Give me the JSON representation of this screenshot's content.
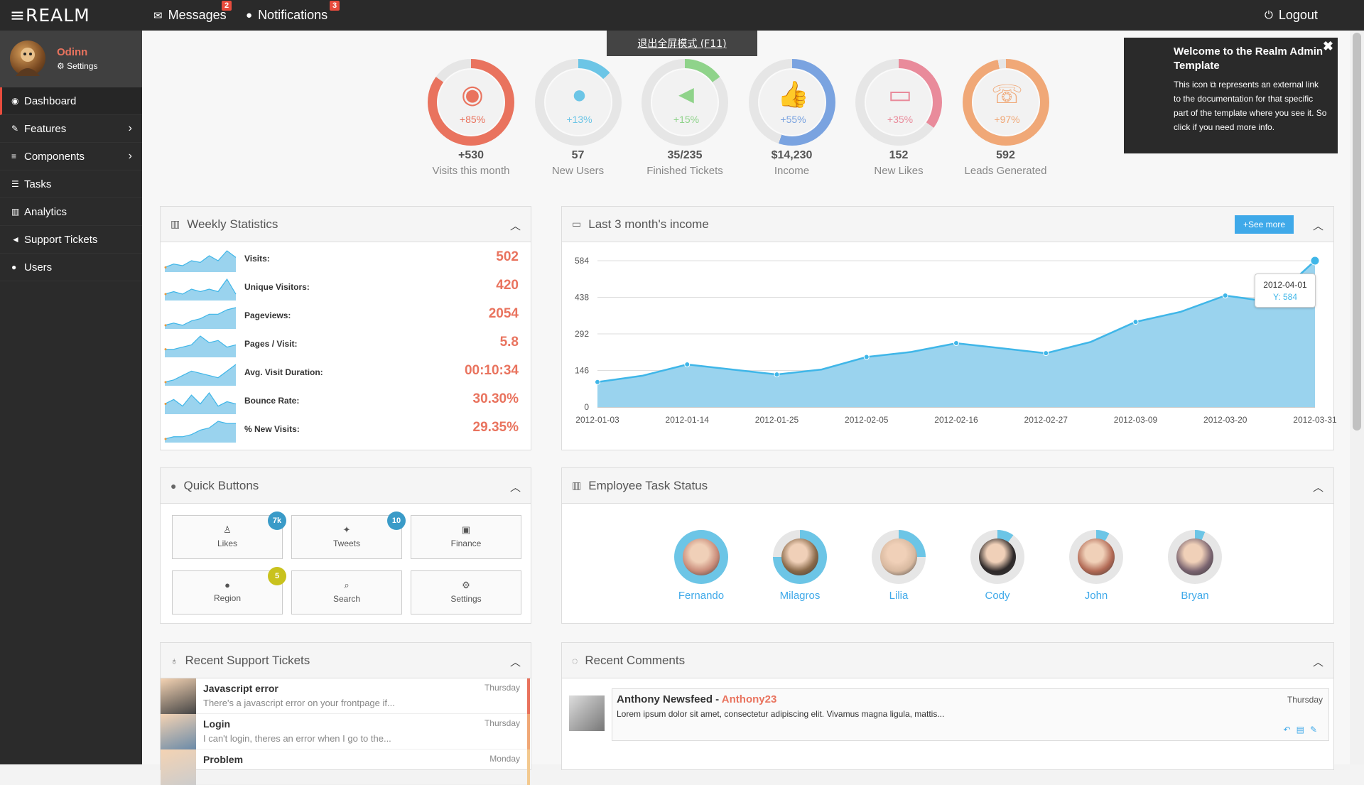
{
  "brand": "REALM",
  "topbar": {
    "messages": {
      "label": "Messages",
      "count": "2"
    },
    "notifications": {
      "label": "Notifications",
      "count": "3"
    },
    "logout": "Logout"
  },
  "fullscreen_tip": "退出全屏模式 (F11)",
  "profile": {
    "name": "Odinn",
    "settings": "Settings"
  },
  "menu": [
    {
      "label": "Dashboard",
      "icon": "dashboard-icon"
    },
    {
      "label": "Features",
      "icon": "magic-icon"
    },
    {
      "label": "Components",
      "icon": "bars-icon"
    },
    {
      "label": "Tasks",
      "icon": "tasks-icon"
    },
    {
      "label": "Analytics",
      "icon": "bar-chart-icon"
    },
    {
      "label": "Support Tickets",
      "icon": "bullhorn-icon"
    },
    {
      "label": "Users",
      "icon": "user-icon"
    }
  ],
  "circles": [
    {
      "pct": "+85%",
      "value": "+530",
      "label": "Visits this month",
      "fill": 0.85,
      "color": "#e9735e",
      "icon": "eye-icon"
    },
    {
      "pct": "+13%",
      "value": "57",
      "label": "New Users",
      "fill": 0.13,
      "color": "#6cc5e6",
      "icon": "user-icon"
    },
    {
      "pct": "+15%",
      "value": "35/235",
      "label": "Finished Tickets",
      "fill": 0.15,
      "color": "#8fd38a",
      "icon": "bullhorn-icon"
    },
    {
      "pct": "+55%",
      "value": "$14,230",
      "label": "Income",
      "fill": 0.55,
      "color": "#7aa3e0",
      "icon": "thumbs-up-icon"
    },
    {
      "pct": "+35%",
      "value": "152",
      "label": "New Likes",
      "fill": 0.35,
      "color": "#e98b9b",
      "icon": "credit-card-icon"
    },
    {
      "pct": "+97%",
      "value": "592",
      "label": "Leads Generated",
      "fill": 0.97,
      "color": "#f0a877",
      "icon": "phone-icon"
    }
  ],
  "help": {
    "title": "Welcome to the Realm Admin Template",
    "text1": "This icon",
    "text2": "represents an external link to the documentation for that specific part of the template where you see it. So click if you need more info."
  },
  "weekly": {
    "title": "Weekly Statistics",
    "rows": [
      {
        "label": "Visits:",
        "value": "502",
        "spark": [
          2,
          4,
          3,
          6,
          5,
          9,
          6,
          12,
          8
        ]
      },
      {
        "label": "Unique Visitors:",
        "value": "420",
        "spark": [
          2,
          3,
          2,
          4,
          3,
          4,
          3,
          8,
          2
        ]
      },
      {
        "label": "Pageviews:",
        "value": "2054",
        "spark": [
          1,
          2,
          1,
          3,
          4,
          6,
          6,
          8,
          9
        ]
      },
      {
        "label": "Pages / Visit:",
        "value": "5.8",
        "spark": [
          3,
          3,
          4,
          5,
          9,
          6,
          7,
          4,
          5
        ]
      },
      {
        "label": "Avg. Visit Duration:",
        "value": "00:10:34",
        "spark": [
          1,
          2,
          4,
          6,
          5,
          4,
          3,
          6,
          9
        ]
      },
      {
        "label": "Bounce Rate:",
        "value": "30.30%",
        "spark": [
          4,
          6,
          3,
          8,
          4,
          9,
          3,
          5,
          4
        ]
      },
      {
        "label": "% New Visits:",
        "value": "29.35%",
        "spark": [
          1,
          2,
          2,
          3,
          5,
          6,
          9,
          8,
          8
        ]
      }
    ]
  },
  "income": {
    "title": "Last 3 month's income",
    "see_more": "See more",
    "tooltip_date": "2012-04-01",
    "tooltip_value": "Y: 584"
  },
  "chart_data": {
    "type": "area",
    "x": [
      "2012-01-03",
      "2012-01-08",
      "2012-01-14",
      "2012-01-19",
      "2012-01-25",
      "2012-01-30",
      "2012-02-05",
      "2012-02-11",
      "2012-02-16",
      "2012-02-22",
      "2012-02-27",
      "2012-03-04",
      "2012-03-09",
      "2012-03-15",
      "2012-03-20",
      "2012-03-26",
      "2012-04-01"
    ],
    "y": [
      100,
      125,
      170,
      150,
      130,
      150,
      200,
      220,
      255,
      235,
      215,
      260,
      340,
      380,
      445,
      420,
      584
    ],
    "xticks": [
      "2012-01-03",
      "2012-01-14",
      "2012-01-25",
      "2012-02-05",
      "2012-02-16",
      "2012-02-27",
      "2012-03-09",
      "2012-03-20",
      "2012-03-31"
    ],
    "yticks": [
      "0",
      "146",
      "292",
      "438",
      "584"
    ],
    "ylim": [
      0,
      584
    ],
    "markers": [
      0,
      2,
      4,
      6,
      8,
      10,
      12,
      14,
      16
    ],
    "color": "#3fb6e8",
    "fill": "#9ad3ee",
    "grid": true
  },
  "quick": {
    "title": "Quick Buttons",
    "buttons": [
      {
        "label": "Likes",
        "icon": "thumbs-up-icon",
        "badge": "7k",
        "badge_color": "#3a9bc8"
      },
      {
        "label": "Tweets",
        "icon": "twitter-icon",
        "badge": "10",
        "badge_color": "#3a9bc8"
      },
      {
        "label": "Finance",
        "icon": "money-icon",
        "badge": "",
        "badge_color": ""
      },
      {
        "label": "Region",
        "icon": "globe-icon",
        "badge": "5",
        "badge_color": "#c9c21d"
      },
      {
        "label": "Search",
        "icon": "search-icon",
        "badge": "",
        "badge_color": ""
      },
      {
        "label": "Settings",
        "icon": "cogs-icon",
        "badge": "",
        "badge_color": ""
      }
    ]
  },
  "employees": {
    "title": "Employee Task Status",
    "people": [
      {
        "name": "Fernando",
        "fill": 1.0
      },
      {
        "name": "Milagros",
        "fill": 0.75
      },
      {
        "name": "Lilia",
        "fill": 0.25
      },
      {
        "name": "Cody",
        "fill": 0.1
      },
      {
        "name": "John",
        "fill": 0.08
      },
      {
        "name": "Bryan",
        "fill": 0.06
      }
    ]
  },
  "tickets": {
    "title": "Recent Support Tickets",
    "items": [
      {
        "title": "Javascript error",
        "desc": "There's a javascript error on your frontpage if...",
        "when": "Thursday",
        "bar": "#e9735e"
      },
      {
        "title": "Login",
        "desc": "I can't login, theres an error when I go to the...",
        "when": "Thursday",
        "bar": "#f0a877"
      },
      {
        "title": "Problem",
        "desc": "",
        "when": "Monday",
        "bar": "#f3c98f"
      }
    ]
  },
  "comments": {
    "title": "Recent Comments",
    "items": [
      {
        "name": "Anthony Newsfeed",
        "user": "Anthony23",
        "text": "Lorem ipsum dolor sit amet, consectetur adipiscing elit. Vivamus magna ligula, mattis...",
        "when": "Thursday"
      }
    ]
  }
}
